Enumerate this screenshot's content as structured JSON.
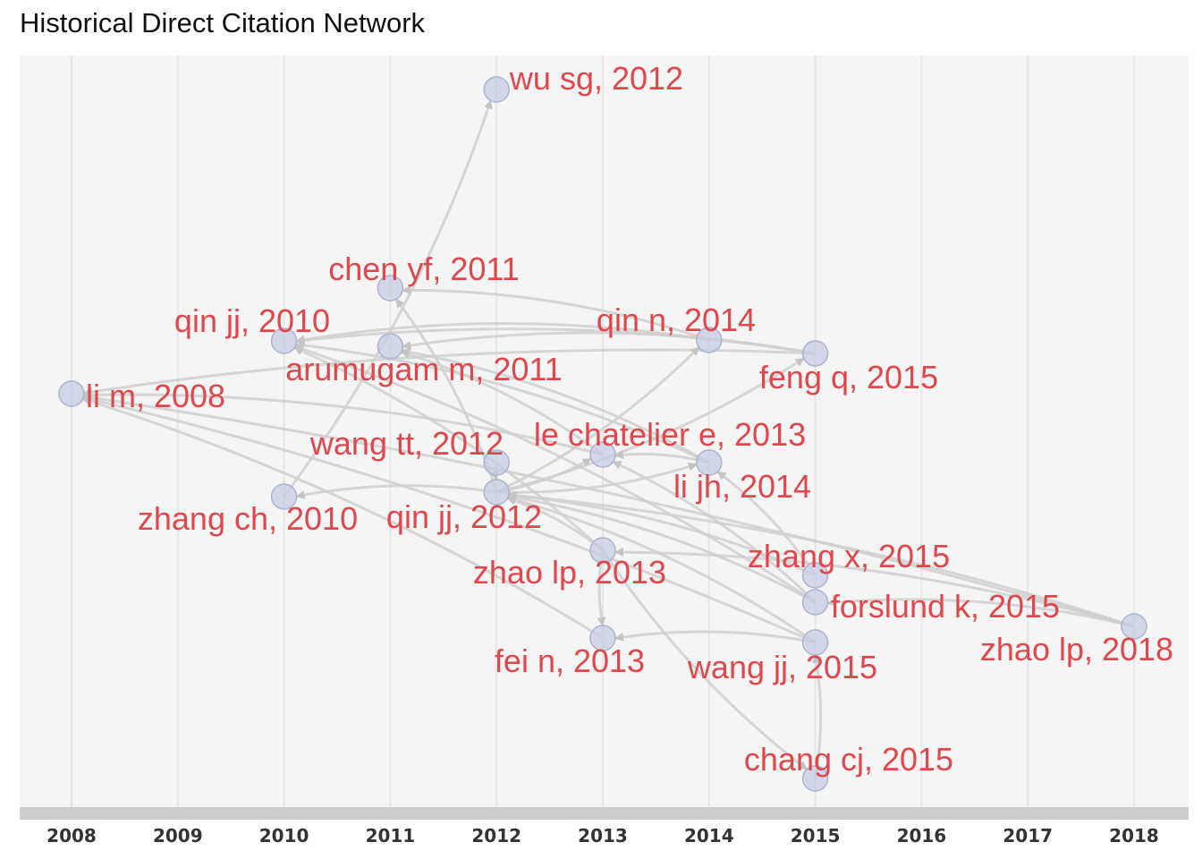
{
  "title": "Historical Direct Citation Network",
  "colors": {
    "node_fill": "#c5cbe3",
    "node_stroke": "#aab2cf",
    "edge": "#cfcfcf",
    "label": "#e0474c",
    "grid": "#e6e6e6",
    "tick_text": "#333333"
  },
  "axis": {
    "years": [
      "2008",
      "2009",
      "2010",
      "2011",
      "2012",
      "2013",
      "2014",
      "2015",
      "2016",
      "2017",
      "2018"
    ]
  },
  "nodes": [
    {
      "id": "wusg2012",
      "label": "wu sg, 2012",
      "year": 2012
    },
    {
      "id": "chenyf2011",
      "label": "chen yf, 2011",
      "year": 2011
    },
    {
      "id": "qinjj2010",
      "label": "qin jj, 2010",
      "year": 2010
    },
    {
      "id": "qinn2014",
      "label": "qin n, 2014",
      "year": 2014
    },
    {
      "id": "arumugam2011",
      "label": "arumugam m, 2011",
      "year": 2011
    },
    {
      "id": "fengq2015",
      "label": "feng q, 2015",
      "year": 2015
    },
    {
      "id": "lim2008",
      "label": "li m, 2008",
      "year": 2008
    },
    {
      "id": "wangtt2012",
      "label": "wang tt, 2012",
      "year": 2012
    },
    {
      "id": "lechatelier2013",
      "label": "le chatelier e, 2013",
      "year": 2013
    },
    {
      "id": "lijh2014",
      "label": "li jh, 2014",
      "year": 2014
    },
    {
      "id": "zhangch2010",
      "label": "zhang ch, 2010",
      "year": 2010
    },
    {
      "id": "qinjj2012",
      "label": "qin jj, 2012",
      "year": 2012
    },
    {
      "id": "zhaolp2013",
      "label": "zhao lp, 2013",
      "year": 2013
    },
    {
      "id": "zhangx2015",
      "label": "zhang x, 2015",
      "year": 2015
    },
    {
      "id": "forslund2015",
      "label": "forslund k, 2015",
      "year": 2015
    },
    {
      "id": "zhaolp2018",
      "label": "zhao lp, 2018",
      "year": 2018
    },
    {
      "id": "fein2013",
      "label": "fei n, 2013",
      "year": 2013
    },
    {
      "id": "wangjj2015",
      "label": "wang jj, 2015",
      "year": 2015
    },
    {
      "id": "changcj2015",
      "label": "chang cj, 2015",
      "year": 2015
    }
  ],
  "edges": [
    [
      "zhangch2010",
      "wusg2012"
    ],
    [
      "qinn2014",
      "chenyf2011"
    ],
    [
      "fengq2015",
      "qinjj2010"
    ],
    [
      "fengq2015",
      "arumugam2011"
    ],
    [
      "fengq2015",
      "lim2008"
    ],
    [
      "qinn2014",
      "qinjj2010"
    ],
    [
      "qinjj2012",
      "qinn2014"
    ],
    [
      "qinjj2012",
      "fengq2015"
    ],
    [
      "qinjj2012",
      "lechatelier2013"
    ],
    [
      "qinjj2012",
      "lijh2014"
    ],
    [
      "qinjj2012",
      "zhangch2010"
    ],
    [
      "qinjj2012",
      "chenyf2011"
    ],
    [
      "zhaolp2013",
      "qinjj2010"
    ],
    [
      "zhaolp2013",
      "qinjj2012"
    ],
    [
      "zhaolp2013",
      "fein2013"
    ],
    [
      "zhaolp2013",
      "changcj2015"
    ],
    [
      "lijh2014",
      "qinjj2010"
    ],
    [
      "lijh2014",
      "lechatelier2013"
    ],
    [
      "lijh2014",
      "arumugam2011"
    ],
    [
      "zhangx2015",
      "qinjj2012"
    ],
    [
      "zhangx2015",
      "lijh2014"
    ],
    [
      "forslund2015",
      "qinjj2010"
    ],
    [
      "forslund2015",
      "lechatelier2013"
    ],
    [
      "forslund2015",
      "qinjj2012"
    ],
    [
      "zhaolp2018",
      "lim2008"
    ],
    [
      "zhaolp2018",
      "qinjj2012"
    ],
    [
      "zhaolp2018",
      "forslund2015"
    ],
    [
      "zhaolp2018",
      "zhaolp2013"
    ],
    [
      "wangjj2015",
      "fein2013"
    ],
    [
      "wangjj2015",
      "lim2008"
    ],
    [
      "wangjj2015",
      "qinjj2012"
    ],
    [
      "changcj2015",
      "wangjj2015"
    ],
    [
      "wangtt2012",
      "qinjj2012"
    ],
    [
      "lechatelier2013",
      "lim2008"
    ],
    [
      "lechatelier2013",
      "arumugam2011"
    ],
    [
      "fein2013",
      "lim2008"
    ]
  ]
}
